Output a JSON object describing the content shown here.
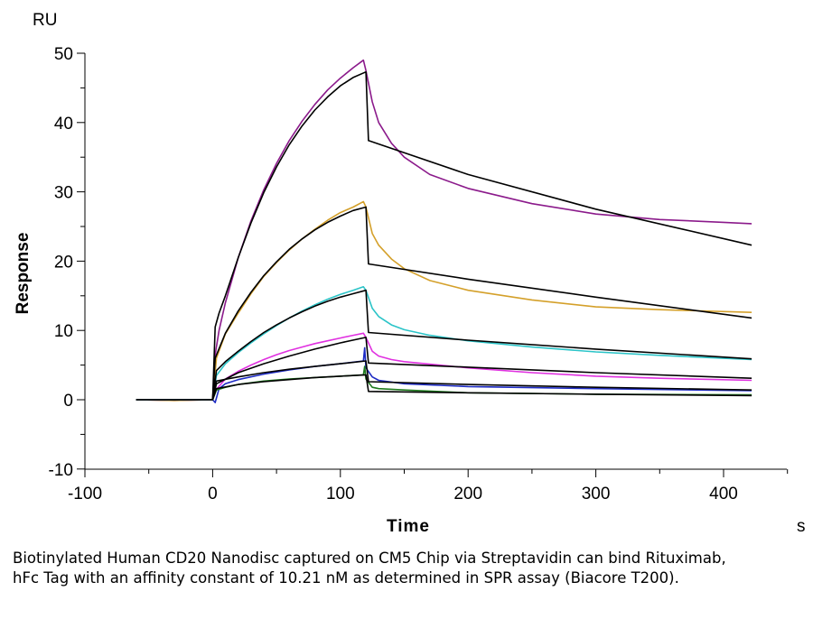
{
  "chart_data": {
    "type": "line",
    "title": "",
    "xlabel": "Time",
    "ylabel": "Response",
    "x_unit": "s",
    "y_unit": "RU",
    "xlim": [
      -100,
      450
    ],
    "ylim": [
      -10,
      50
    ],
    "x_ticks": [
      -100,
      0,
      100,
      200,
      300,
      400
    ],
    "y_ticks": [
      -10,
      0,
      10,
      20,
      30,
      40,
      50
    ],
    "grid": false,
    "legend": "none",
    "series": [
      {
        "color": "#8b1a8b",
        "role": "measured",
        "points": [
          [
            -60,
            0
          ],
          [
            -30,
            -0.1
          ],
          [
            0,
            0
          ],
          [
            2,
            6.5
          ],
          [
            5,
            10
          ],
          [
            10,
            14
          ],
          [
            20,
            20.5
          ],
          [
            30,
            25.8
          ],
          [
            40,
            30.3
          ],
          [
            50,
            34.1
          ],
          [
            60,
            37.4
          ],
          [
            70,
            40.2
          ],
          [
            80,
            42.6
          ],
          [
            90,
            44.7
          ],
          [
            100,
            46.4
          ],
          [
            110,
            47.9
          ],
          [
            118,
            49
          ],
          [
            120,
            47.5
          ],
          [
            125,
            43
          ],
          [
            130,
            40
          ],
          [
            140,
            37
          ],
          [
            150,
            35
          ],
          [
            170,
            32.5
          ],
          [
            200,
            30.5
          ],
          [
            250,
            28.3
          ],
          [
            300,
            26.8
          ],
          [
            350,
            26
          ],
          [
            400,
            25.6
          ],
          [
            422,
            25.4
          ]
        ]
      },
      {
        "color": "#000000",
        "role": "fit",
        "points": [
          [
            -60,
            0
          ],
          [
            0,
            0
          ],
          [
            2,
            10.5
          ],
          [
            5,
            12.5
          ],
          [
            10,
            15
          ],
          [
            20,
            20.5
          ],
          [
            30,
            25.5
          ],
          [
            40,
            29.9
          ],
          [
            50,
            33.6
          ],
          [
            60,
            36.8
          ],
          [
            70,
            39.5
          ],
          [
            80,
            41.8
          ],
          [
            90,
            43.7
          ],
          [
            100,
            45.3
          ],
          [
            110,
            46.5
          ],
          [
            120,
            47.3
          ],
          [
            122,
            37.4
          ],
          [
            200,
            32.5
          ],
          [
            300,
            27.5
          ],
          [
            422,
            22.3
          ]
        ]
      },
      {
        "color": "#d4a02a",
        "role": "measured",
        "points": [
          [
            -60,
            0
          ],
          [
            -30,
            -0.1
          ],
          [
            0,
            0
          ],
          [
            3,
            6
          ],
          [
            10,
            9.5
          ],
          [
            20,
            12.5
          ],
          [
            30,
            15.3
          ],
          [
            40,
            17.8
          ],
          [
            50,
            19.8
          ],
          [
            60,
            21.6
          ],
          [
            70,
            23.2
          ],
          [
            80,
            24.6
          ],
          [
            90,
            25.9
          ],
          [
            100,
            27
          ],
          [
            110,
            27.8
          ],
          [
            118,
            28.6
          ],
          [
            120,
            27.8
          ],
          [
            125,
            24
          ],
          [
            130,
            22.3
          ],
          [
            140,
            20.3
          ],
          [
            150,
            18.9
          ],
          [
            170,
            17.2
          ],
          [
            200,
            15.8
          ],
          [
            250,
            14.4
          ],
          [
            300,
            13.4
          ],
          [
            350,
            13
          ],
          [
            422,
            12.6
          ]
        ]
      },
      {
        "color": "#000000",
        "role": "fit",
        "points": [
          [
            0,
            0
          ],
          [
            2,
            6
          ],
          [
            10,
            9.6
          ],
          [
            20,
            12.8
          ],
          [
            30,
            15.5
          ],
          [
            40,
            17.9
          ],
          [
            50,
            19.9
          ],
          [
            60,
            21.7
          ],
          [
            70,
            23.2
          ],
          [
            80,
            24.5
          ],
          [
            90,
            25.6
          ],
          [
            100,
            26.5
          ],
          [
            110,
            27.3
          ],
          [
            120,
            27.8
          ],
          [
            122,
            19.6
          ],
          [
            200,
            17.4
          ],
          [
            300,
            14.8
          ],
          [
            422,
            11.8
          ]
        ]
      },
      {
        "color": "#2bc4c8",
        "role": "measured",
        "points": [
          [
            -60,
            0
          ],
          [
            0,
            0
          ],
          [
            3,
            3.5
          ],
          [
            10,
            5.2
          ],
          [
            20,
            6.8
          ],
          [
            30,
            8.2
          ],
          [
            40,
            9.5
          ],
          [
            50,
            10.7
          ],
          [
            60,
            11.8
          ],
          [
            70,
            12.8
          ],
          [
            80,
            13.7
          ],
          [
            90,
            14.5
          ],
          [
            100,
            15.2
          ],
          [
            110,
            15.8
          ],
          [
            118,
            16.3
          ],
          [
            120,
            15.8
          ],
          [
            125,
            13.2
          ],
          [
            130,
            12
          ],
          [
            140,
            10.8
          ],
          [
            150,
            10.1
          ],
          [
            170,
            9.3
          ],
          [
            200,
            8.5
          ],
          [
            250,
            7.6
          ],
          [
            300,
            6.9
          ],
          [
            350,
            6.4
          ],
          [
            422,
            5.8
          ]
        ]
      },
      {
        "color": "#000000",
        "role": "fit",
        "points": [
          [
            0,
            0
          ],
          [
            3,
            4.2
          ],
          [
            10,
            5.5
          ],
          [
            20,
            7
          ],
          [
            30,
            8.4
          ],
          [
            40,
            9.7
          ],
          [
            50,
            10.8
          ],
          [
            60,
            11.8
          ],
          [
            70,
            12.7
          ],
          [
            80,
            13.5
          ],
          [
            90,
            14.2
          ],
          [
            100,
            14.8
          ],
          [
            110,
            15.3
          ],
          [
            120,
            15.8
          ],
          [
            122,
            9.7
          ],
          [
            200,
            8.6
          ],
          [
            300,
            7.3
          ],
          [
            422,
            5.9
          ]
        ]
      },
      {
        "color": "#e030e0",
        "role": "measured",
        "points": [
          [
            -60,
            0
          ],
          [
            0,
            0
          ],
          [
            3,
            1.5
          ],
          [
            10,
            3
          ],
          [
            20,
            4.1
          ],
          [
            30,
            5
          ],
          [
            40,
            5.8
          ],
          [
            50,
            6.5
          ],
          [
            60,
            7.1
          ],
          [
            70,
            7.6
          ],
          [
            80,
            8.1
          ],
          [
            90,
            8.5
          ],
          [
            100,
            8.9
          ],
          [
            110,
            9.3
          ],
          [
            118,
            9.6
          ],
          [
            120,
            9
          ],
          [
            125,
            7
          ],
          [
            130,
            6.3
          ],
          [
            140,
            5.8
          ],
          [
            150,
            5.5
          ],
          [
            200,
            4.6
          ],
          [
            250,
            3.9
          ],
          [
            300,
            3.4
          ],
          [
            350,
            3.1
          ],
          [
            422,
            2.8
          ]
        ]
      },
      {
        "color": "#000000",
        "role": "fit",
        "points": [
          [
            0,
            0
          ],
          [
            3,
            2.3
          ],
          [
            20,
            3.9
          ],
          [
            40,
            5.2
          ],
          [
            60,
            6.3
          ],
          [
            80,
            7.3
          ],
          [
            100,
            8.2
          ],
          [
            120,
            9
          ],
          [
            122,
            5.3
          ],
          [
            200,
            4.7
          ],
          [
            300,
            3.9
          ],
          [
            422,
            3.1
          ]
        ]
      },
      {
        "color": "#1d2bc4",
        "role": "measured",
        "points": [
          [
            -60,
            0
          ],
          [
            0,
            0
          ],
          [
            2,
            -0.4
          ],
          [
            5,
            1.6
          ],
          [
            10,
            2.3
          ],
          [
            20,
            2.9
          ],
          [
            40,
            3.7
          ],
          [
            60,
            4.3
          ],
          [
            80,
            4.8
          ],
          [
            100,
            5.2
          ],
          [
            118,
            5.6
          ],
          [
            119,
            7.5
          ],
          [
            120,
            4.6
          ],
          [
            125,
            3.3
          ],
          [
            130,
            2.8
          ],
          [
            150,
            2.3
          ],
          [
            200,
            1.9
          ],
          [
            300,
            1.6
          ],
          [
            422,
            1.3
          ]
        ]
      },
      {
        "color": "#000000",
        "role": "fit",
        "points": [
          [
            0,
            0
          ],
          [
            3,
            2.7
          ],
          [
            20,
            3.3
          ],
          [
            40,
            3.9
          ],
          [
            60,
            4.4
          ],
          [
            80,
            4.8
          ],
          [
            100,
            5.2
          ],
          [
            120,
            5.6
          ],
          [
            122,
            2.6
          ],
          [
            200,
            2.2
          ],
          [
            300,
            1.8
          ],
          [
            422,
            1.4
          ]
        ]
      },
      {
        "color": "#1e7a1e",
        "role": "measured",
        "points": [
          [
            -60,
            0
          ],
          [
            0,
            0
          ],
          [
            3,
            1.4
          ],
          [
            10,
            1.8
          ],
          [
            20,
            2.2
          ],
          [
            40,
            2.7
          ],
          [
            60,
            3
          ],
          [
            80,
            3.2
          ],
          [
            100,
            3.4
          ],
          [
            118,
            3.6
          ],
          [
            119,
            4.8
          ],
          [
            120,
            3
          ],
          [
            125,
            1.8
          ],
          [
            130,
            1.6
          ],
          [
            150,
            1.4
          ],
          [
            200,
            1
          ],
          [
            300,
            0.8
          ],
          [
            422,
            0.7
          ]
        ]
      },
      {
        "color": "#000000",
        "role": "fit",
        "points": [
          [
            0,
            0
          ],
          [
            3,
            1.6
          ],
          [
            20,
            2.2
          ],
          [
            40,
            2.6
          ],
          [
            60,
            2.9
          ],
          [
            80,
            3.2
          ],
          [
            100,
            3.4
          ],
          [
            120,
            3.6
          ],
          [
            122,
            1.2
          ],
          [
            200,
            1
          ],
          [
            300,
            0.8
          ],
          [
            422,
            0.6
          ]
        ]
      }
    ]
  },
  "caption": "Biotinylated Human CD20 Nanodisc captured on CM5 Chip via Streptavidin can bind Rituximab, hFc Tag with an affinity constant of 10.21 nM as determined in SPR assay (Biacore T200)."
}
